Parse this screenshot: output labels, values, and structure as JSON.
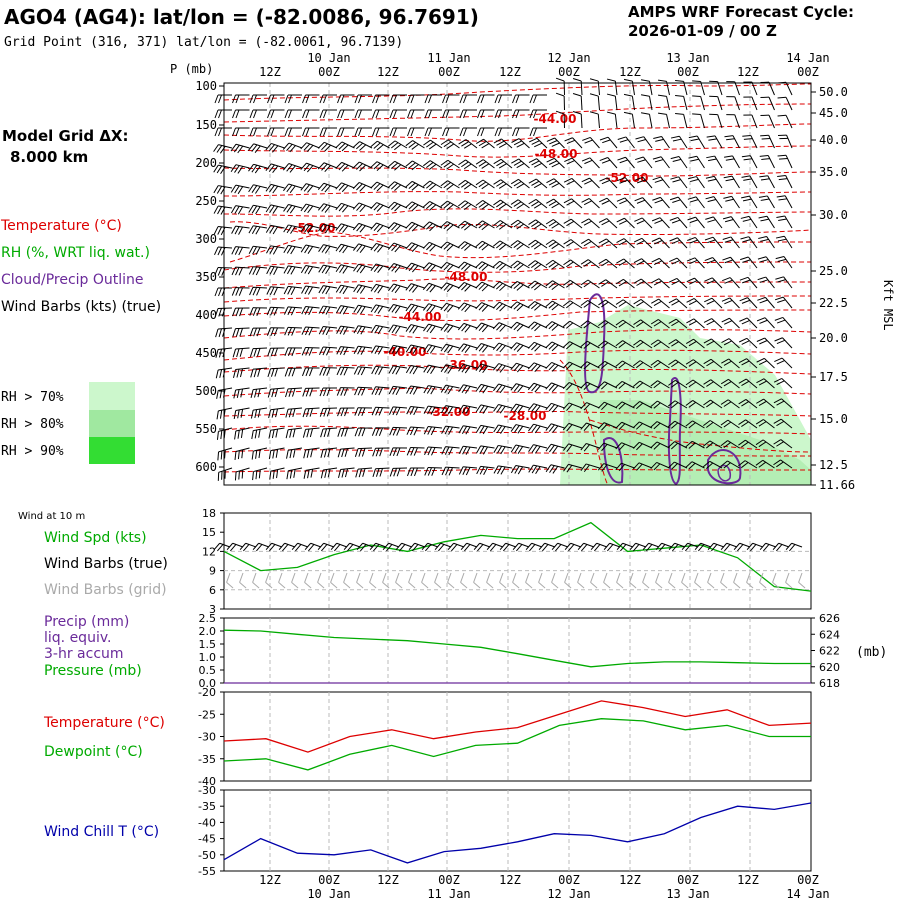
{
  "header": {
    "title": "AGO4 (AG4):  lat/lon = (-82.0086, 96.7691)",
    "subtitle": "Grid Point (316, 371) lat/lon = (-82.0061, 96.7139)",
    "cycle_line1": "AMPS WRF Forecast Cycle:",
    "cycle_line2": "2026-01-09 / 00  Z",
    "grid_label_1": "Model Grid ΔX:",
    "grid_label_2": "8.000 km"
  },
  "colors": {
    "temperature": "#dd0000",
    "rh": "#00aa00",
    "cloud": "#6a2a9a",
    "wind_chill": "#0000aa",
    "gray": "#aaaaaa",
    "rh70": "#ccf7cc",
    "rh80": "#a0e8a0",
    "rh90": "#33dd33"
  },
  "time_axis": {
    "top_labels": [
      "12Z",
      "00Z",
      "12Z",
      "00Z",
      "12Z",
      "00Z",
      "12Z",
      "00Z",
      "12Z",
      "00Z"
    ],
    "top_dates": [
      "10 Jan",
      "11 Jan",
      "12 Jan",
      "13 Jan",
      "14 Jan"
    ],
    "bottom_labels": [
      "12Z",
      "00Z",
      "12Z",
      "00Z",
      "12Z",
      "00Z",
      "12Z",
      "00Z",
      "12Z",
      "00Z"
    ],
    "bottom_dates": [
      "10 Jan",
      "11 Jan",
      "12 Jan",
      "13 Jan",
      "14 Jan"
    ]
  },
  "chart_data": [
    {
      "type": "heatmap",
      "panel": "upper-air cross section",
      "ylabel": "P (mb)",
      "right_label": "Kft MSL",
      "pressure_ticks": [
        "100",
        "150",
        "200",
        "250",
        "300",
        "350",
        "400",
        "450",
        "500",
        "550",
        "600"
      ],
      "height_ticks": [
        "50.0",
        "45.0",
        "40.0",
        "35.0",
        "30.0",
        "25.0",
        "22.5",
        "20.0",
        "17.5",
        "15.0",
        "12.5",
        "11.66"
      ],
      "legend": [
        "Temperature (°C)",
        "RH (%, WRT liq. wat.)",
        "Cloud/Precip Outline",
        "Wind Barbs (kts) (true)"
      ],
      "rh_legend": [
        "RH > 70%",
        "RH > 80%",
        "RH > 90%"
      ],
      "temperature_contour_labels": [
        "-44.00",
        "-48.00",
        "-52.00",
        "-52.00",
        "-48.00",
        "-44.00",
        "-40.00",
        "-36.00",
        "-32.00",
        "-28.00"
      ]
    },
    {
      "type": "line",
      "panel": "wind at 10 m",
      "heading": "Wind at 10 m",
      "legend": [
        "Wind Spd (kts)",
        "Wind Barbs (true)",
        "Wind Barbs (grid)"
      ],
      "y_ticks": [
        "18",
        "15",
        "12",
        "9",
        "6",
        "3"
      ],
      "ylim": [
        3,
        18
      ],
      "x_hours": [
        0,
        6,
        12,
        18,
        24,
        30,
        36,
        42,
        48,
        54,
        60,
        66,
        72,
        78,
        84,
        90,
        96,
        102,
        108,
        114,
        120
      ],
      "wind_speed": [
        12.0,
        9.0,
        9.5,
        11.5,
        13.0,
        12.0,
        13.5,
        14.5,
        14.0,
        14.0,
        16.5,
        12.0,
        12.5,
        13.0,
        11.0,
        6.5,
        5.8
      ]
    },
    {
      "type": "line",
      "panel": "precip and pressure",
      "legend": [
        "Precip (mm)",
        "liq. equiv.",
        "3-hr accum",
        "Pressure (mb)"
      ],
      "left_ticks": [
        "2.5",
        "2.0",
        "1.5",
        "1.0",
        "0.5",
        "0.0"
      ],
      "right_ticks": [
        "626",
        "624",
        "622",
        "620",
        "618"
      ],
      "right_label": "(mb)",
      "ylim_left": [
        0,
        2.5
      ],
      "ylim_right": [
        618,
        626
      ],
      "pressure": [
        624.5,
        624.4,
        624.0,
        623.6,
        623.4,
        623.2,
        622.8,
        622.4,
        621.6,
        620.8,
        620.0,
        620.4,
        620.6,
        620.6,
        620.5,
        620.4,
        620.4
      ],
      "precip": [
        0,
        0,
        0,
        0,
        0,
        0,
        0,
        0,
        0,
        0,
        0,
        0,
        0,
        0,
        0,
        0,
        0
      ]
    },
    {
      "type": "line",
      "panel": "temperature and dewpoint",
      "legend": [
        "Temperature (°C)",
        "Dewpoint (°C)"
      ],
      "y_ticks": [
        "-20",
        "-25",
        "-30",
        "-35",
        "-40"
      ],
      "ylim": [
        -40,
        -20
      ],
      "temperature": [
        -31.0,
        -30.5,
        -33.5,
        -30.0,
        -28.5,
        -30.5,
        -29.0,
        -28.0,
        -25.0,
        -22.0,
        -23.5,
        -25.5,
        -24.0,
        -27.5,
        -27.0
      ],
      "dewpoint": [
        -35.5,
        -35.0,
        -37.5,
        -34.0,
        -32.0,
        -34.5,
        -32.0,
        -31.5,
        -27.5,
        -26.0,
        -26.5,
        -28.5,
        -27.5,
        -30.0,
        -30.0
      ]
    },
    {
      "type": "line",
      "panel": "wind chill",
      "legend": [
        "Wind Chill T (°C)"
      ],
      "y_ticks": [
        "-30",
        "-35",
        "-40",
        "-45",
        "-50",
        "-55"
      ],
      "ylim": [
        -55,
        -30
      ],
      "wind_chill": [
        -51.5,
        -45.0,
        -49.5,
        -50.0,
        -48.5,
        -52.5,
        -49.0,
        -48.0,
        -46.0,
        -43.5,
        -44.0,
        -46.0,
        -43.5,
        -38.5,
        -35.0,
        -36.0,
        -34.0
      ]
    }
  ]
}
